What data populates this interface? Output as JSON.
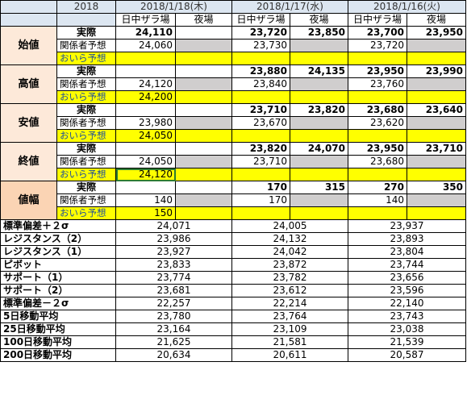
{
  "corner_label": "2018",
  "dates": [
    "2018/1/18(木)",
    "2018/1/17(水)",
    "2018/1/16(火)"
  ],
  "sub_headers": {
    "day": "日中ザラ場",
    "night": "夜場"
  },
  "row_labels": {
    "actual": "実際",
    "kankei": "関係者予想",
    "oira": "おいら予想"
  },
  "sections": [
    {
      "name": "始値",
      "actual": [
        "24,110",
        "",
        "23,720",
        "23,850",
        "23,700",
        "23,950"
      ],
      "kankei": [
        "24,060",
        "23,730",
        "23,720"
      ],
      "oira": [
        "",
        "",
        ""
      ]
    },
    {
      "name": "高値",
      "actual": [
        "",
        "",
        "23,880",
        "24,135",
        "23,950",
        "23,990"
      ],
      "kankei": [
        "24,120",
        "23,840",
        "23,760"
      ],
      "oira": [
        "24,200",
        "",
        ""
      ]
    },
    {
      "name": "安値",
      "actual": [
        "",
        "",
        "23,710",
        "23,820",
        "23,680",
        "23,640"
      ],
      "kankei": [
        "23,980",
        "23,670",
        "23,620"
      ],
      "oira": [
        "24,050",
        "",
        ""
      ]
    },
    {
      "name": "終値",
      "actual": [
        "",
        "",
        "23,820",
        "24,070",
        "23,950",
        "23,710"
      ],
      "kankei": [
        "24,050",
        "23,710",
        "23,680"
      ],
      "oira": [
        "24,120",
        "",
        ""
      ]
    },
    {
      "name": "値幅",
      "actual": [
        "",
        "",
        "170",
        "315",
        "270",
        "350"
      ],
      "kankei": [
        "140",
        "170",
        "140"
      ],
      "oira": [
        "150",
        "",
        ""
      ]
    }
  ],
  "stats": [
    {
      "label": "標準偏差＋２σ",
      "values": [
        "24,071",
        "24,005",
        "23,937"
      ]
    },
    {
      "label": "レジスタンス（2）",
      "values": [
        "23,986",
        "24,132",
        "23,893"
      ]
    },
    {
      "label": "レジスタンス（1）",
      "values": [
        "23,927",
        "24,042",
        "23,804"
      ]
    },
    {
      "label": "ピボット",
      "values": [
        "23,833",
        "23,872",
        "23,744"
      ]
    },
    {
      "label": "サポート（1）",
      "values": [
        "23,774",
        "23,782",
        "23,656"
      ]
    },
    {
      "label": "サポート（2）",
      "values": [
        "23,681",
        "23,612",
        "23,596"
      ]
    },
    {
      "label": "標準偏差－２σ",
      "values": [
        "22,257",
        "22,214",
        "22,140"
      ]
    },
    {
      "label": "5日移動平均",
      "values": [
        "23,780",
        "23,764",
        "23,743"
      ]
    },
    {
      "label": "25日移動平均",
      "values": [
        "23,164",
        "23,109",
        "23,038"
      ]
    },
    {
      "label": "100日移動平均",
      "values": [
        "21,625",
        "21,581",
        "21,539"
      ]
    },
    {
      "label": "200日移動平均",
      "values": [
        "20,634",
        "20,611",
        "20,587"
      ]
    }
  ],
  "colors": {
    "header_blue": "#dce6f1",
    "pink": "#fde9d9",
    "orange": "#fbd4b4",
    "yellow": "#ffff00",
    "gray": "#d0cece"
  }
}
